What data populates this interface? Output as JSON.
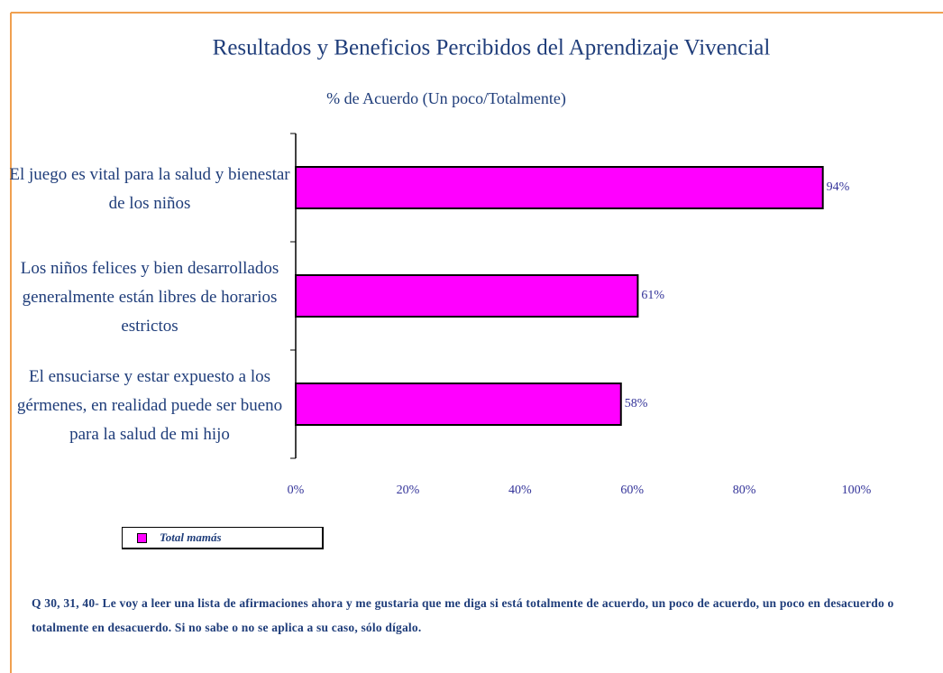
{
  "chart_data": {
    "type": "bar",
    "orientation": "horizontal",
    "title": "Resultados y Beneficios Percibidos del Aprendizaje Vivencial",
    "subtitle": "% de Acuerdo (Un poco/Totalmente)",
    "categories": [
      "El juego es vital para la salud y bienestar de los niños",
      "Los niños felices y bien desarrollados generalmente están libres de horarios estrictos",
      "El ensuciarse y estar expuesto a los gérmenes, en realidad puede ser bueno para la salud de mi hijo"
    ],
    "series": [
      {
        "name": "Total mamás",
        "color": "#ff00ff",
        "values": [
          94,
          61,
          58
        ],
        "value_labels": [
          "94%",
          "61%",
          "58%"
        ]
      }
    ],
    "xlim": [
      0,
      100
    ],
    "xticks": [
      {
        "value": 0,
        "label": "0%"
      },
      {
        "value": 20,
        "label": "20%"
      },
      {
        "value": 40,
        "label": "40%"
      },
      {
        "value": 60,
        "label": "60%"
      },
      {
        "value": 80,
        "label": "80%"
      },
      {
        "value": 100,
        "label": "100%"
      }
    ],
    "legend": "bottom-left",
    "footnote": "Q 30, 31, 40- Le voy a leer una lista de afirmaciones ahora y me gustaria que me diga si está totalmente de acuerdo, un poco de acuerdo, un poco en desacuerdo o totalmente en desacuerdo. Si no sabe o no se aplica a su caso, sólo dígalo."
  }
}
